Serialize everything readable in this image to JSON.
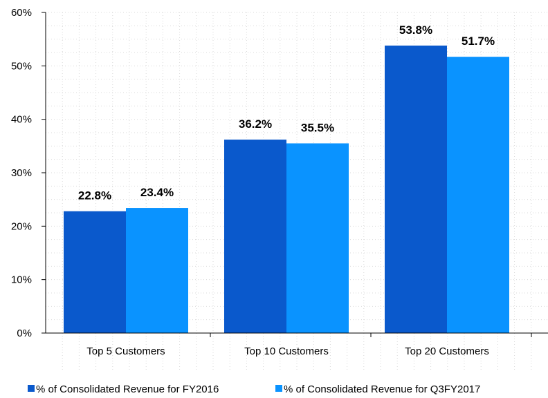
{
  "chart_data": {
    "type": "bar",
    "categories": [
      "Top 5 Customers",
      "Top 10 Customers",
      "Top 20 Customers"
    ],
    "series": [
      {
        "name": "% of Consolidated Revenue for FY2016",
        "values": [
          22.8,
          36.2,
          53.8
        ],
        "color": "#0a59cc",
        "labels": [
          "22.8%",
          "36.2%",
          "53.8%"
        ]
      },
      {
        "name": "% of Consolidated Revenue for Q3FY2017",
        "values": [
          23.4,
          35.5,
          51.7
        ],
        "color": "#0a93ff",
        "labels": [
          "23.4%",
          "35.5%",
          "51.7%"
        ]
      }
    ],
    "ylim": [
      0,
      60
    ],
    "yticks": [
      0,
      10,
      20,
      30,
      40,
      50,
      60
    ],
    "ytick_labels": [
      "0%",
      "10%",
      "20%",
      "30%",
      "40%",
      "50%",
      "60%"
    ],
    "grid": true,
    "legend_position": "bottom"
  }
}
